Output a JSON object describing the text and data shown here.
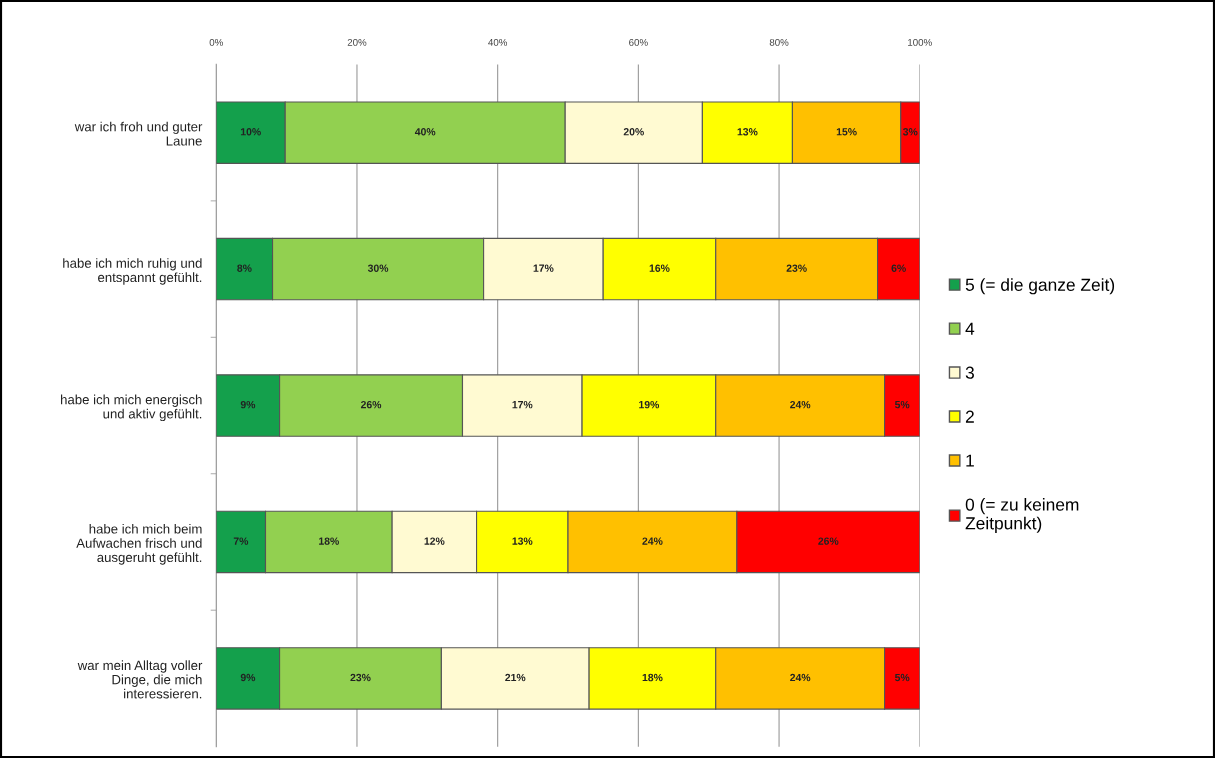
{
  "chart_data": {
    "type": "bar",
    "orientation": "horizontal",
    "stacked": true,
    "categories": [
      "war ich froh und guter\nLaune",
      "habe ich mich ruhig und\nentspannt gefühlt.",
      "habe ich mich energisch\nund aktiv gefühlt.",
      "habe ich mich beim\nAufwachen frisch und\nausgeruht gefühlt.",
      "war mein Alltag voller\nDinge, die mich\ninteressieren."
    ],
    "series": [
      {
        "name": "5 (= die ganze Zeit)",
        "color": "#14a04c",
        "values": [
          9.8,
          8,
          9,
          7,
          9
        ],
        "value_labels": [
          "10%",
          "8%",
          "9%",
          "7%",
          "9%"
        ]
      },
      {
        "name": "4",
        "color": "#92d050",
        "values": [
          39.8,
          30,
          26,
          18,
          23
        ],
        "value_labels": [
          "40%",
          "30%",
          "26%",
          "18%",
          "23%"
        ]
      },
      {
        "name": "3",
        "color": "#fffad2",
        "values": [
          19.5,
          17,
          17,
          12,
          21
        ],
        "value_labels": [
          "20%",
          "17%",
          "17%",
          "12%",
          "21%"
        ]
      },
      {
        "name": "2",
        "color": "#ffff00",
        "values": [
          12.8,
          16,
          19,
          13,
          18
        ],
        "value_labels": [
          "13%",
          "16%",
          "19%",
          "13%",
          "18%"
        ]
      },
      {
        "name": "1",
        "color": "#ffc000",
        "values": [
          15.4,
          23,
          24,
          24,
          24
        ],
        "value_labels": [
          "15%",
          "23%",
          "24%",
          "24%",
          "24%"
        ]
      },
      {
        "name": "0 (= zu keinem\nZeitpunkt)",
        "color": "#ff0000",
        "values": [
          2.7,
          6,
          5,
          26,
          5
        ],
        "value_labels": [
          "3%",
          "6%",
          "5%",
          "26%",
          "5%"
        ]
      }
    ],
    "xlim": [
      0,
      100
    ],
    "xticks": [
      {
        "value": 0,
        "label": "0%"
      },
      {
        "value": 20,
        "label": "20%"
      },
      {
        "value": 40,
        "label": "40%"
      },
      {
        "value": 60,
        "label": "60%"
      },
      {
        "value": 80,
        "label": "80%"
      },
      {
        "value": 100,
        "label": "100%"
      }
    ],
    "grid": "x",
    "legend": "right"
  }
}
